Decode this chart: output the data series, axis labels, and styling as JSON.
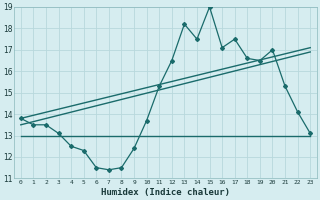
{
  "title": "",
  "xlabel": "Humidex (Indice chaleur)",
  "bg_color": "#d6edf0",
  "grid_color": "#b8d8dc",
  "line_color": "#1a6b6b",
  "x_min": -0.5,
  "x_max": 23.5,
  "y_min": 11,
  "y_max": 19,
  "x_ticks": [
    0,
    1,
    2,
    3,
    4,
    5,
    6,
    7,
    8,
    9,
    10,
    11,
    12,
    13,
    14,
    15,
    16,
    17,
    18,
    19,
    20,
    21,
    22,
    23
  ],
  "y_ticks": [
    11,
    12,
    13,
    14,
    15,
    16,
    17,
    18,
    19
  ],
  "line1_x": [
    0,
    1,
    2,
    3,
    4,
    5,
    6,
    7,
    8,
    9,
    10,
    11,
    12,
    13,
    14,
    15,
    16,
    17,
    18,
    19,
    20,
    21,
    22,
    23
  ],
  "line1_y": [
    13.8,
    13.5,
    13.5,
    13.1,
    12.5,
    12.3,
    11.5,
    11.4,
    11.5,
    12.4,
    13.7,
    15.3,
    16.5,
    18.2,
    17.5,
    19.0,
    17.1,
    17.5,
    16.6,
    16.5,
    17.0,
    15.3,
    14.1,
    13.1
  ],
  "line2_x": [
    0,
    23
  ],
  "line2_y": [
    13.8,
    17.1
  ],
  "line3_x": [
    0,
    23
  ],
  "line3_y": [
    13.5,
    16.9
  ],
  "line4_x": [
    0,
    23
  ],
  "line4_y": [
    13.0,
    13.0
  ]
}
